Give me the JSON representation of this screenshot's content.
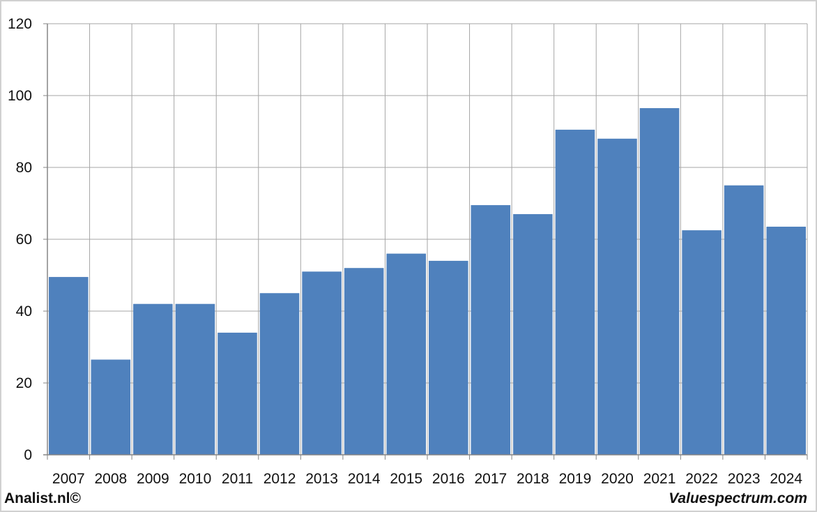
{
  "footer": {
    "left_text": "Analist.nl©",
    "right_text": "Valuespectrum.com"
  },
  "colors": {
    "bar": "#4f81bd",
    "grid": "#a6a6a6",
    "frame": "#d0d0d0",
    "axis": "#868686"
  },
  "chart_data": {
    "type": "bar",
    "title": "",
    "xlabel": "",
    "ylabel": "",
    "categories": [
      "2007",
      "2008",
      "2009",
      "2010",
      "2011",
      "2012",
      "2013",
      "2014",
      "2015",
      "2016",
      "2017",
      "2018",
      "2019",
      "2020",
      "2021",
      "2022",
      "2023",
      "2024"
    ],
    "values": [
      49.5,
      26.5,
      42,
      42,
      34,
      45,
      51,
      52,
      56,
      54,
      69.5,
      67,
      90.5,
      88,
      96.5,
      62.5,
      75,
      63.5
    ],
    "ylim": [
      0,
      120
    ],
    "yticks": [
      0,
      20,
      40,
      60,
      80,
      100,
      120
    ],
    "grid": true,
    "legend": "none"
  }
}
